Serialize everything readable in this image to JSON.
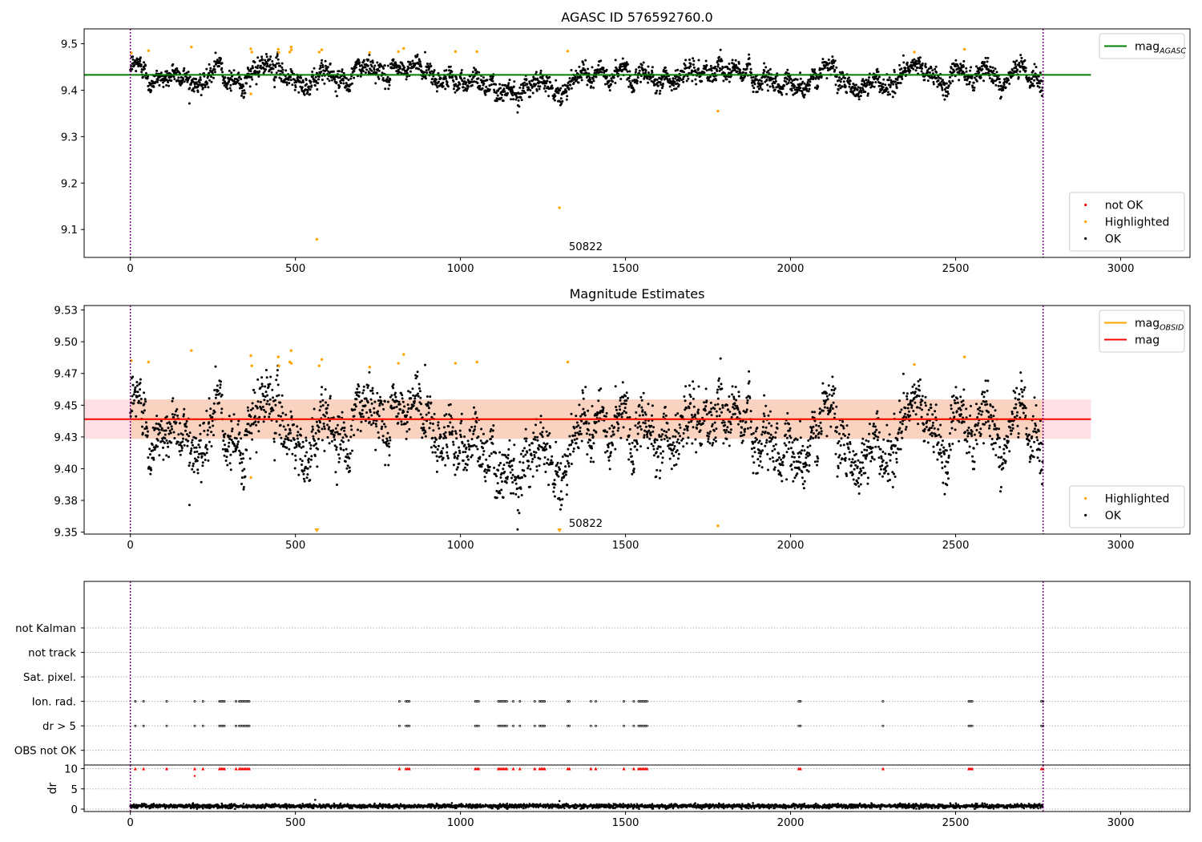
{
  "chart_data": [
    {
      "type": "scatter",
      "title": "AGASC ID 576592760.0",
      "annotation": "50822",
      "xlim": [
        -140,
        3210
      ],
      "ylim": [
        9.04,
        9.532
      ],
      "xticks": [
        0,
        500,
        1000,
        1500,
        2000,
        2500,
        3000
      ],
      "yticks": [
        9.1,
        9.2,
        9.3,
        9.4,
        9.5
      ],
      "obs_boundaries": [
        0,
        2765
      ],
      "grid": false,
      "hlines": [
        {
          "name": "mag_AGASC",
          "value": 9.433,
          "xrange": [
            -140,
            2910
          ],
          "color": "#008000"
        }
      ],
      "ok_series": {
        "name": "OK",
        "color": "#000000",
        "n": 2765,
        "mean": 9.44,
        "scatter": 0.013,
        "slope_per_1000": -0.005
      },
      "highlighted": [
        [
          3,
          9.48
        ],
        [
          55,
          9.485
        ],
        [
          185,
          9.493
        ],
        [
          365,
          9.392
        ],
        [
          365,
          9.489
        ],
        [
          368,
          9.482
        ],
        [
          448,
          9.488
        ],
        [
          450,
          9.481
        ],
        [
          483,
          9.482
        ],
        [
          487,
          9.493
        ],
        [
          488,
          9.487
        ],
        [
          565,
          9.079
        ],
        [
          572,
          9.482
        ],
        [
          580,
          9.487
        ],
        [
          725,
          9.481
        ],
        [
          812,
          9.483
        ],
        [
          828,
          9.49
        ],
        [
          985,
          9.483
        ],
        [
          1050,
          9.483
        ],
        [
          1300,
          9.147
        ],
        [
          1325,
          9.484
        ],
        [
          1780,
          9.355
        ],
        [
          2375,
          9.482
        ],
        [
          2527,
          9.488
        ]
      ],
      "legends": [
        {
          "position": "upper right",
          "entries": [
            {
              "label_main": "mag",
              "label_sub": "AGASC",
              "kind": "line",
              "color": "#008000"
            }
          ]
        },
        {
          "position": "lower right",
          "entries": [
            {
              "label": "not OK",
              "kind": "marker",
              "color": "#ff0000"
            },
            {
              "label": "Highlighted",
              "kind": "marker",
              "color": "#ffa500"
            },
            {
              "label": "OK",
              "kind": "marker",
              "color": "#000000"
            }
          ]
        }
      ]
    },
    {
      "type": "scatter",
      "title": "Magnitude Estimates",
      "annotation": "50822",
      "xlim": [
        -140,
        3210
      ],
      "ylim": [
        9.3485,
        9.5285
      ],
      "xticks": [
        0,
        500,
        1000,
        1500,
        2000,
        2500,
        3000
      ],
      "yticks": [
        9.35,
        9.375,
        9.4,
        9.425,
        9.45,
        9.475,
        9.5,
        9.525
      ],
      "obs_boundaries": [
        0,
        2765
      ],
      "grid": false,
      "bands": [
        {
          "name": "mag band",
          "range": [
            9.4235,
            9.4545
          ],
          "xrange": [
            -140,
            2910
          ],
          "color": "#ffe0e4"
        },
        {
          "name": "mag_OBSID band",
          "range": [
            9.4235,
            9.4545
          ],
          "xrange": [
            0,
            2765
          ],
          "color": "#f9d2c0"
        }
      ],
      "hlines": [
        {
          "name": "mag_OBSID",
          "value": 9.439,
          "xrange": [
            0,
            2765
          ],
          "color": "#ffa500"
        },
        {
          "name": "mag",
          "value": 9.439,
          "xrange": [
            -140,
            2910
          ],
          "color": "#ff0000"
        }
      ],
      "ok_series": {
        "name": "OK",
        "color": "#000000",
        "n": 2765,
        "mean": 9.44,
        "scatter": 0.013,
        "slope_per_1000": -0.005
      },
      "highlighted": [
        [
          3,
          9.485
        ],
        [
          55,
          9.484
        ],
        [
          185,
          9.493
        ],
        [
          365,
          9.393
        ],
        [
          365,
          9.489
        ],
        [
          368,
          9.481
        ],
        [
          448,
          9.488
        ],
        [
          450,
          9.481
        ],
        [
          483,
          9.484
        ],
        [
          487,
          9.493
        ],
        [
          488,
          9.483
        ],
        [
          572,
          9.481
        ],
        [
          580,
          9.486
        ],
        [
          725,
          9.48
        ],
        [
          812,
          9.483
        ],
        [
          828,
          9.49
        ],
        [
          985,
          9.483
        ],
        [
          1050,
          9.484
        ],
        [
          1325,
          9.484
        ],
        [
          1780,
          9.355
        ],
        [
          2375,
          9.482
        ],
        [
          2527,
          9.488
        ]
      ],
      "offscale_below": [
        565,
        1300
      ],
      "legends": [
        {
          "position": "upper right",
          "entries": [
            {
              "label_main": "mag",
              "label_sub": "OBSID",
              "kind": "line",
              "color": "#ffa500"
            },
            {
              "label": "mag",
              "kind": "line",
              "color": "#ff0000"
            }
          ]
        },
        {
          "position": "lower right",
          "entries": [
            {
              "label": "Highlighted",
              "kind": "marker",
              "color": "#ffa500"
            },
            {
              "label": "OK",
              "kind": "marker",
              "color": "#000000"
            }
          ]
        }
      ]
    },
    {
      "type": "scatter",
      "title": "",
      "xlim": [
        -140,
        3210
      ],
      "ylim": [
        -0.6,
        6.9
      ],
      "obs_boundaries": [
        0,
        2765
      ],
      "categories": [
        "OBS not OK",
        "dr > 5",
        "Ion. rad.",
        "Sat. pixel.",
        "not track",
        "not Kalman"
      ],
      "grid": "horizontal dotted",
      "flag_times": [
        15,
        40,
        110,
        195,
        220,
        270,
        275,
        280,
        285,
        320,
        330,
        335,
        340,
        345,
        350,
        355,
        360,
        815,
        835,
        840,
        845,
        1045,
        1050,
        1055,
        1115,
        1120,
        1125,
        1130,
        1135,
        1140,
        1160,
        1180,
        1225,
        1240,
        1245,
        1250,
        1255,
        1325,
        1330,
        1395,
        1410,
        1495,
        1525,
        1540,
        1545,
        1550,
        1555,
        1560,
        1565,
        2025,
        2030,
        2280,
        2540,
        2545,
        2550,
        2760,
        2765
      ]
    },
    {
      "type": "scatter",
      "title": "",
      "ylabel": "dr",
      "xlim": [
        -140,
        3210
      ],
      "ylim": [
        -0.6,
        10.9
      ],
      "xticks": [
        0,
        500,
        1000,
        1500,
        2000,
        2500,
        3000
      ],
      "yticks": [
        0,
        5,
        10
      ],
      "obs_boundaries": [
        0,
        2765
      ],
      "grid": "horizontal dotted",
      "dr_series": {
        "name": "dr",
        "color": "#000000",
        "n": 2765,
        "mean": 0.75,
        "scatter": 0.25
      },
      "dr_outliers": [
        [
          560,
          2.3
        ],
        [
          1300,
          2.0
        ]
      ],
      "capped": {
        "value": 10,
        "color": "#ff0000"
      },
      "extra_points": [
        [
          195,
          8.2
        ]
      ],
      "flag_times": [
        15,
        40,
        110,
        195,
        220,
        270,
        275,
        280,
        285,
        320,
        330,
        335,
        340,
        345,
        350,
        355,
        360,
        815,
        835,
        840,
        845,
        1045,
        1050,
        1055,
        1115,
        1120,
        1125,
        1130,
        1135,
        1140,
        1160,
        1180,
        1225,
        1240,
        1245,
        1250,
        1255,
        1325,
        1330,
        1395,
        1410,
        1495,
        1525,
        1540,
        1545,
        1550,
        1555,
        1560,
        1565,
        2025,
        2030,
        2280,
        2540,
        2545,
        2550,
        2760,
        2765
      ]
    }
  ]
}
